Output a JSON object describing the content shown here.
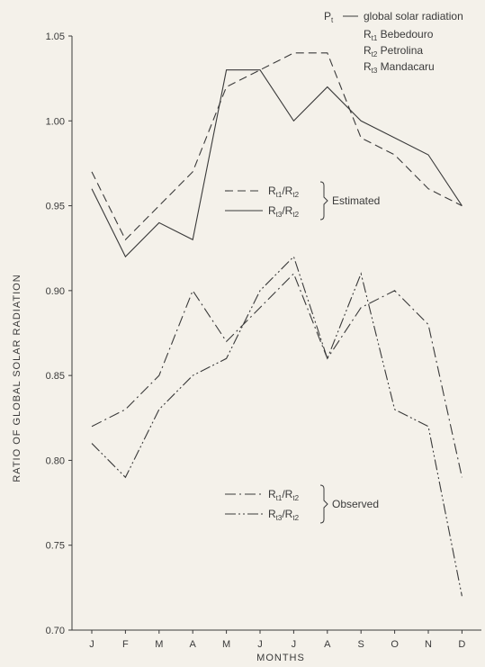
{
  "chart_data": {
    "type": "line",
    "xlabel": "MONTHS",
    "ylabel": "RATIO OF GLOBAL SOLAR RADIATION",
    "categories": [
      "J",
      "F",
      "M",
      "A",
      "M",
      "J",
      "J",
      "A",
      "S",
      "O",
      "N",
      "D"
    ],
    "ylim": [
      0.7,
      1.05
    ],
    "yticks": [
      "0.70",
      "0.75",
      "0.80",
      "0.85",
      "0.90",
      "0.95",
      "1.00",
      "1.05"
    ],
    "grid": false,
    "legend_placement": "center",
    "series": [
      {
        "name": "Rt1/Rt2",
        "label_main": "R",
        "label_sub1": "t1",
        "label_sub2": "t2",
        "group": "Estimated",
        "style": "dashed",
        "values": [
          0.97,
          0.93,
          0.95,
          0.97,
          1.02,
          1.03,
          1.04,
          1.04,
          0.99,
          0.98,
          0.96,
          0.95
        ]
      },
      {
        "name": "Rt3/Rt2",
        "label_main": "R",
        "label_sub1": "t3",
        "label_sub2": "t2",
        "group": "Estimated",
        "style": "solid",
        "values": [
          0.96,
          0.92,
          0.94,
          0.93,
          1.03,
          1.03,
          1.0,
          1.02,
          1.0,
          0.99,
          0.98,
          0.95
        ]
      },
      {
        "name": "Rt1/Rt2",
        "label_main": "R",
        "label_sub1": "t1",
        "label_sub2": "t2",
        "group": "Observed",
        "style": "dashdot",
        "values": [
          0.82,
          0.83,
          0.85,
          0.9,
          0.87,
          0.89,
          0.91,
          0.86,
          0.89,
          0.9,
          0.88,
          0.79
        ]
      },
      {
        "name": "Rt3/Rt2",
        "label_main": "R",
        "label_sub1": "t3",
        "label_sub2": "t2",
        "group": "Observed",
        "style": "dashdotdot",
        "values": [
          0.81,
          0.79,
          0.83,
          0.85,
          0.86,
          0.9,
          0.92,
          0.86,
          0.91,
          0.83,
          0.82,
          0.72
        ]
      }
    ],
    "groups": [
      "Estimated",
      "Observed"
    ],
    "key": {
      "pt_main": "P",
      "pt_sub": "t",
      "pt_text": "global solar radiation",
      "items": [
        {
          "main": "R",
          "sub": "t1",
          "text": "Bebedouro"
        },
        {
          "main": "R",
          "sub": "t2",
          "text": "Petrolina"
        },
        {
          "main": "R",
          "sub": "t3",
          "text": "Mandacaru"
        }
      ]
    }
  }
}
